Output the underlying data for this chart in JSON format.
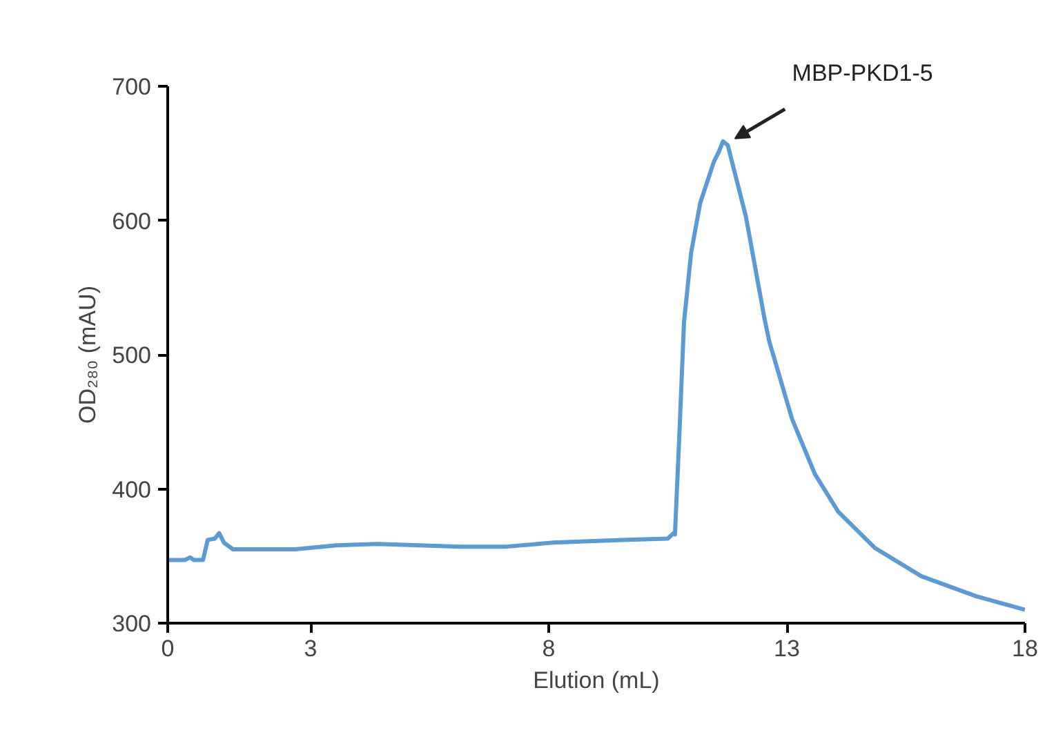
{
  "chart_data": {
    "type": "line",
    "xlabel": "Elution (mL)",
    "ylabel": "OD₂₈₀ (mAU)",
    "xlim": [
      0,
      18
    ],
    "xticks": [
      0,
      3,
      8,
      13,
      18
    ],
    "ylim": [
      300,
      700
    ],
    "yticks": [
      300,
      400,
      500,
      600,
      700
    ],
    "grid": false,
    "annotations": [
      {
        "text": "MBP-PKD1-5",
        "x": 11.66,
        "y": 659
      }
    ],
    "series": [
      {
        "color": "#5b9bd5",
        "x": [
          0,
          0.36,
          0.47,
          0.55,
          0.74,
          0.84,
          0.99,
          1.08,
          1.18,
          1.37,
          1.81,
          2.68,
          3.54,
          4.41,
          6.15,
          7.12,
          8.09,
          9.54,
          10.5,
          10.62,
          10.65,
          10.74,
          10.84,
          10.99,
          11.18,
          11.47,
          11.57,
          11.66,
          11.76,
          12.14,
          12.53,
          12.63,
          13.11,
          13.59,
          14.08,
          14.85,
          15.82,
          16.98,
          18
        ],
        "values": [
          347,
          347,
          349,
          347,
          347,
          362,
          363,
          367,
          360,
          355,
          355,
          355,
          358,
          359,
          357,
          357,
          360,
          362,
          363,
          367,
          366,
          438,
          524,
          576,
          613,
          644,
          651,
          659,
          656,
          603,
          527,
          510,
          452,
          411,
          383,
          356,
          335,
          320,
          310
        ]
      }
    ]
  }
}
